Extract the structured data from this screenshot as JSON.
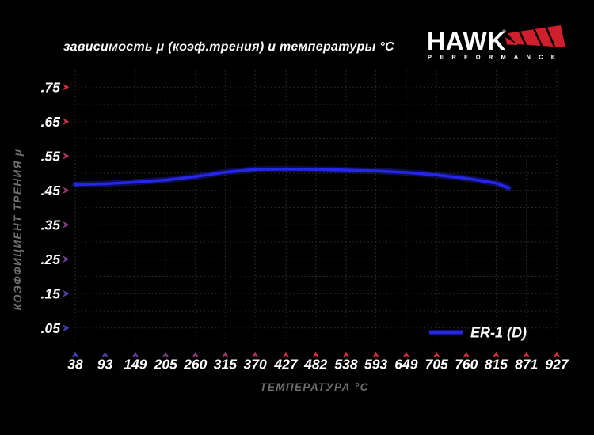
{
  "logo": {
    "brand": "HAWK",
    "registered": "®",
    "subtitle": "PERFORMANCE",
    "wing_color": "#cf1f2c"
  },
  "colors": {
    "background": "#000000",
    "title_text": "#ffffff",
    "tick_text": "#ffffff",
    "axis_label_text": "#6e6e6e",
    "grid": "#333333",
    "axis_red": "#d62e32",
    "axis_blue": "#4242c0",
    "curve_blue": "#2626e8"
  },
  "chart_data": {
    "type": "line",
    "title": "зависимость μ (коэф.трения) и температуры °C",
    "xlabel": "ТЕМПЕРАТУРА °C",
    "ylabel": "КОЭФФИЦИЕНТ ТРЕНИЯ μ",
    "x_ticks": [
      38,
      93,
      149,
      205,
      260,
      315,
      370,
      427,
      482,
      538,
      593,
      649,
      705,
      760,
      815,
      871,
      927
    ],
    "y_ticks": [
      ".05",
      ".15",
      ".25",
      ".35",
      ".45",
      ".55",
      ".65",
      ".75"
    ],
    "y_tick_values": [
      0.05,
      0.15,
      0.25,
      0.35,
      0.45,
      0.55,
      0.65,
      0.75
    ],
    "xlim": [
      38,
      927
    ],
    "ylim": [
      0,
      0.8
    ],
    "grid": "dotted",
    "axis_gradient": "blue at origin to red at axis ends",
    "legend": {
      "label": "ER-1 (D)",
      "position": "bottom-right"
    },
    "series": [
      {
        "name": "ER-1 (D)",
        "color": "#2626e8",
        "points": [
          [
            38,
            0.467
          ],
          [
            93,
            0.469
          ],
          [
            149,
            0.474
          ],
          [
            205,
            0.48
          ],
          [
            260,
            0.49
          ],
          [
            315,
            0.503
          ],
          [
            370,
            0.511
          ],
          [
            427,
            0.512
          ],
          [
            482,
            0.511
          ],
          [
            538,
            0.509
          ],
          [
            593,
            0.507
          ],
          [
            649,
            0.502
          ],
          [
            705,
            0.495
          ],
          [
            760,
            0.485
          ],
          [
            815,
            0.471
          ],
          [
            838,
            0.457
          ]
        ]
      }
    ]
  }
}
